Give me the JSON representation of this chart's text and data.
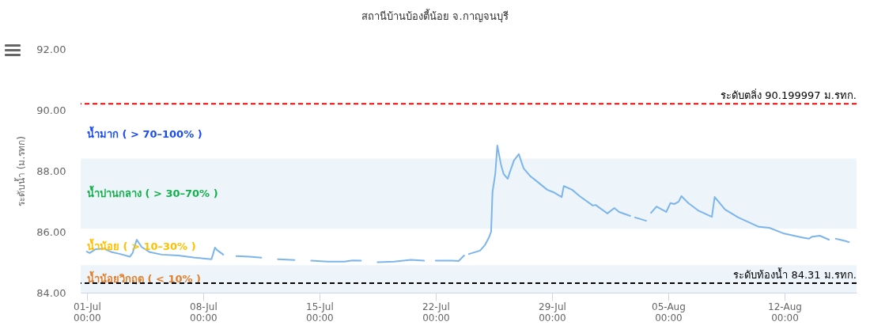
{
  "chart_data": {
    "type": "line",
    "title": "สถานีบ้านบ้องตี้น้อย จ.กาญจนบุรี",
    "ylabel": "ระดับน้ำ (ม.รทก)",
    "x": [
      "--07-01T00:00",
      "--07-01T04:00",
      "--07-01T12:00",
      "--07-02T00:00",
      "--07-02T12:00",
      "--07-03T00:00",
      "--07-03T14:00",
      "--07-03T18:00",
      "--07-04T00:00",
      "--07-04T07:00",
      "--07-04T19:00",
      "--07-05T12:00",
      "--07-06T12:00",
      "--07-07T12:00",
      "--07-08T12:00",
      "--07-08T17:00",
      "--07-08T20:00",
      "--07-09T05:00",
      "--07-09T12:00",
      "--07-10T00:00",
      "--07-10T19:00",
      "--07-11T12:00",
      "--07-11T19:00",
      "--07-12T12:00",
      "--07-13T12:00",
      "--07-14T00:00",
      "--07-14T12:00",
      "--07-15T12:00",
      "--07-16T12:00",
      "--07-17T00:00",
      "--07-17T12:00",
      "--07-17T19:00",
      "--07-18T12:00",
      "--07-19T12:00",
      "--07-20T12:00",
      "--07-21T07:00",
      "--07-21T14:00",
      "--07-22T00:00",
      "--07-23T00:00",
      "--07-23T09:00",
      "--07-23T17:00",
      "--07-23T20:00",
      "--07-24T00:00",
      "--07-24T16:00",
      "--07-24T23:00",
      "--07-25T05:00",
      "--07-25T08:00",
      "--07-25T10:00",
      "--07-25T14:00",
      "--07-25T17:00",
      "--07-25T22:00",
      "--07-26T02:00",
      "--07-26T08:00",
      "--07-26T11:00",
      "--07-26T17:00",
      "--07-27T00:00",
      "--07-27T07:00",
      "--07-27T16:00",
      "--07-28T03:00",
      "--07-28T17:00",
      "--07-29T02:00",
      "--07-29T14:00",
      "--07-29T17:00",
      "--07-30T05:00",
      "--07-30T16:00",
      "--07-31T11:00",
      "--07-31T15:00",
      "--08-01T08:00",
      "--08-01T18:00",
      "--08-02T01:00",
      "--08-02T17:00",
      "--08-02T20:00",
      "--08-03T00:00",
      "--08-03T16:00",
      "--08-03T20:00",
      "--08-03T23:00",
      "--08-04T07:00",
      "--08-04T21:00",
      "--08-05T03:00",
      "--08-05T09:00",
      "--08-05T15:00",
      "--08-05T19:00",
      "--08-06T05:00",
      "--08-06T19:00",
      "--08-07T15:00",
      "--08-07T19:00",
      "--08-08T10:00",
      "--08-09T05:00",
      "--08-10T11:00",
      "--08-11T02:00",
      "--08-11T22:00",
      "--08-13T00:00",
      "--08-13T11:00",
      "--08-13T16:00",
      "--08-14T03:00",
      "--08-14T16:00",
      "--08-14T19:00",
      "--08-15T02:00",
      "--08-15T08:00",
      "--08-15T17:00",
      "--08-15T21:00"
    ],
    "series": [
      {
        "color": "#7cb5ec",
        "values": [
          85.35,
          85.3,
          85.42,
          85.45,
          85.33,
          85.27,
          85.18,
          85.3,
          85.74,
          85.5,
          85.33,
          85.25,
          85.22,
          85.15,
          85.1,
          85.48,
          85.4,
          85.25,
          null,
          85.2,
          85.18,
          85.15,
          null,
          85.1,
          85.07,
          null,
          85.05,
          85.02,
          85.02,
          85.06,
          85.05,
          null,
          85.0,
          85.02,
          85.08,
          85.05,
          null,
          85.05,
          85.05,
          85.04,
          85.22,
          null,
          85.27,
          85.38,
          85.56,
          85.82,
          86.0,
          87.3,
          87.9,
          88.83,
          88.23,
          87.9,
          87.74,
          87.95,
          88.34,
          88.55,
          88.08,
          87.84,
          87.64,
          87.38,
          87.3,
          87.14,
          87.5,
          87.38,
          87.17,
          86.86,
          86.88,
          86.6,
          86.78,
          86.65,
          86.52,
          null,
          86.47,
          86.36,
          null,
          86.62,
          86.83,
          86.65,
          86.94,
          86.91,
          86.99,
          87.17,
          86.94,
          86.7,
          86.49,
          87.14,
          86.73,
          86.47,
          86.16,
          86.13,
          85.95,
          85.82,
          85.77,
          85.84,
          85.87,
          85.74,
          null,
          85.77,
          85.74,
          85.69,
          85.66
        ]
      }
    ],
    "xlim": [
      "--06-30T15:00",
      "--08-16T08:00"
    ],
    "xticks": [
      {
        "value": "--07-01T00:00",
        "label": "01-Jul\n00:00"
      },
      {
        "value": "--07-08T00:00",
        "label": "08-Jul\n00:00"
      },
      {
        "value": "--07-15T00:00",
        "label": "15-Jul\n00:00"
      },
      {
        "value": "--07-22T00:00",
        "label": "22-Jul\n00:00"
      },
      {
        "value": "--07-29T00:00",
        "label": "29-Jul\n00:00"
      },
      {
        "value": "--08-05T00:00",
        "label": "05-Aug\n00:00"
      },
      {
        "value": "--08-12T00:00",
        "label": "12-Aug\n00:00"
      }
    ],
    "ylim": [
      84,
      92
    ],
    "yticks": [
      {
        "value": 84,
        "label": "84.00"
      },
      {
        "value": 86,
        "label": "86.00"
      },
      {
        "value": 88,
        "label": "88.00"
      },
      {
        "value": 90,
        "label": "90.00"
      },
      {
        "value": 92,
        "label": "92.00"
      }
    ],
    "bands": [
      {
        "axis": "y",
        "from": 84,
        "to": 84.9,
        "label": "น้ำน้อยวิกฤต ( < 10% )",
        "color": "#edf5fb"
      },
      {
        "axis": "y",
        "from": 86.1,
        "to": 88.4,
        "label": "น้ำปานกลาง ( > 30–70% )",
        "color": "#edf5fb"
      }
    ],
    "annotations": [
      {
        "text": "น้ำน้อย ( > 10–30% )",
        "y": 85.5
      },
      "น้ำมาก ( > 70–100% )"
    ],
    "ref_lines": [
      {
        "axis": "y",
        "value": 90.199997,
        "label": "ระดับตลิ่ง 90.199997 ม.รทก.",
        "color": "#ff0000",
        "line_style": "dashed"
      },
      {
        "axis": "y",
        "value": 84.31,
        "label": "ระดับท้องน้ำ 84.31 ม.รทก.",
        "color": "#000000",
        "line_style": "dashed"
      }
    ],
    "grid": false,
    "marker": "none",
    "line_style": "solid"
  }
}
